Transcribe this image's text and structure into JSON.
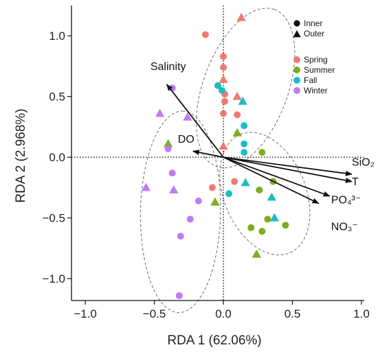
{
  "chart_data": {
    "type": "scatter",
    "xlabel": "RDA 1 (62.06%)",
    "ylabel": "RDA 2 (2.968%)",
    "xlim": [
      -1.1,
      1.02
    ],
    "ylim": [
      -1.18,
      1.25
    ],
    "xticks": [
      -1.0,
      -0.5,
      0.0,
      0.5,
      1.0
    ],
    "yticks": [
      -1.0,
      -0.5,
      0.0,
      0.5,
      1.0
    ],
    "xtick_labels": [
      "−1.0",
      "−0.5",
      "0.0",
      "0.5",
      "1.0"
    ],
    "ytick_labels": [
      "−1.0",
      "−0.5",
      "0.0",
      "0.5",
      "1.0"
    ],
    "grid": false,
    "reference_lines": "dotted lines at x=0 and y=0",
    "legend_placement": "top-right",
    "shape_legend": [
      {
        "label": "Inner",
        "shape": "circle"
      },
      {
        "label": "Outer",
        "shape": "triangle"
      }
    ],
    "season_legend": [
      {
        "label": "Spring",
        "color": "#F07A72"
      },
      {
        "label": "Summer",
        "color": "#7CAE1E"
      },
      {
        "label": "Fall",
        "color": "#1EBCC2"
      },
      {
        "label": "Winter",
        "color": "#C07CF0"
      }
    ],
    "points": [
      {
        "season": "Spring",
        "site": "Inner",
        "x": -0.13,
        "y": 1.01
      },
      {
        "season": "Spring",
        "site": "Outer",
        "x": 0.13,
        "y": 1.15
      },
      {
        "season": "Spring",
        "site": "Inner",
        "x": 0.0,
        "y": 0.83
      },
      {
        "season": "Spring",
        "site": "Inner",
        "x": 0.0,
        "y": 0.74
      },
      {
        "season": "Spring",
        "site": "Outer",
        "x": 0.0,
        "y": 0.64
      },
      {
        "season": "Spring",
        "site": "Inner",
        "x": 0.01,
        "y": 0.52
      },
      {
        "season": "Spring",
        "site": "Inner",
        "x": 0.01,
        "y": 0.46
      },
      {
        "season": "Spring",
        "site": "Outer",
        "x": 0.1,
        "y": 0.5
      },
      {
        "season": "Spring",
        "site": "Inner",
        "x": 0.0,
        "y": 0.36
      },
      {
        "season": "Spring",
        "site": "Inner",
        "x": 0.1,
        "y": 0.35
      },
      {
        "season": "Spring",
        "site": "Outer",
        "x": 0.0,
        "y": 0.09
      },
      {
        "season": "Spring",
        "site": "Inner",
        "x": -0.08,
        "y": -0.25
      },
      {
        "season": "Spring",
        "site": "Inner",
        "x": 0.08,
        "y": -0.2
      },
      {
        "season": "Summer",
        "site": "Outer",
        "x": -0.4,
        "y": 0.11
      },
      {
        "season": "Summer",
        "site": "Outer",
        "x": 0.1,
        "y": 0.2
      },
      {
        "season": "Summer",
        "site": "Inner",
        "x": 0.28,
        "y": 0.04
      },
      {
        "season": "Summer",
        "site": "Inner",
        "x": 0.36,
        "y": -0.2
      },
      {
        "season": "Summer",
        "site": "Inner",
        "x": 0.26,
        "y": -0.27
      },
      {
        "season": "Summer",
        "site": "Outer",
        "x": -0.06,
        "y": -0.37
      },
      {
        "season": "Summer",
        "site": "Inner",
        "x": 0.32,
        "y": -0.51
      },
      {
        "season": "Summer",
        "site": "Inner",
        "x": 0.2,
        "y": -0.58
      },
      {
        "season": "Summer",
        "site": "Inner",
        "x": 0.28,
        "y": -0.61
      },
      {
        "season": "Summer",
        "site": "Inner",
        "x": 0.45,
        "y": -0.56
      },
      {
        "season": "Summer",
        "site": "Outer",
        "x": 0.24,
        "y": -0.8
      },
      {
        "season": "Fall",
        "site": "Inner",
        "x": -0.04,
        "y": 0.59
      },
      {
        "season": "Fall",
        "site": "Inner",
        "x": -0.01,
        "y": 0.55
      },
      {
        "season": "Fall",
        "site": "Outer",
        "x": 0.14,
        "y": 0.46
      },
      {
        "season": "Fall",
        "site": "Inner",
        "x": 0.15,
        "y": 0.26
      },
      {
        "season": "Fall",
        "site": "Inner",
        "x": 0.15,
        "y": 0.11
      },
      {
        "season": "Fall",
        "site": "Inner",
        "x": 0.15,
        "y": 0.04
      },
      {
        "season": "Fall",
        "site": "Outer",
        "x": 0.16,
        "y": -0.21
      },
      {
        "season": "Fall",
        "site": "Inner",
        "x": 0.04,
        "y": -0.3
      },
      {
        "season": "Fall",
        "site": "Outer",
        "x": 0.35,
        "y": -0.33
      },
      {
        "season": "Fall",
        "site": "Outer",
        "x": 0.37,
        "y": -0.5
      },
      {
        "season": "Winter",
        "site": "Inner",
        "x": -0.37,
        "y": 0.57
      },
      {
        "season": "Winter",
        "site": "Outer",
        "x": -0.46,
        "y": 0.36
      },
      {
        "season": "Winter",
        "site": "Outer",
        "x": -0.26,
        "y": 0.33
      },
      {
        "season": "Winter",
        "site": "Inner",
        "x": -0.4,
        "y": 0.07
      },
      {
        "season": "Winter",
        "site": "Inner",
        "x": -0.37,
        "y": -0.13
      },
      {
        "season": "Winter",
        "site": "Outer",
        "x": -0.56,
        "y": -0.25
      },
      {
        "season": "Winter",
        "site": "Outer",
        "x": -0.36,
        "y": -0.27
      },
      {
        "season": "Winter",
        "site": "Inner",
        "x": -0.18,
        "y": -0.36
      },
      {
        "season": "Winter",
        "site": "Inner",
        "x": -0.24,
        "y": -0.51
      },
      {
        "season": "Winter",
        "site": "Inner",
        "x": -0.31,
        "y": -0.65
      },
      {
        "season": "Winter",
        "site": "Inner",
        "x": -0.32,
        "y": -1.14
      }
    ],
    "vectors": [
      {
        "label": "Salinity",
        "x": -0.41,
        "y": 0.6,
        "lx": -0.4,
        "ly": 0.72
      },
      {
        "label": "DO",
        "x": -0.22,
        "y": 0.05,
        "lx": -0.27,
        "ly": 0.12
      },
      {
        "label": "SiO₂",
        "x": 0.93,
        "y": -0.14,
        "lx": 0.93,
        "ly": -0.07
      },
      {
        "label": "T",
        "x": 0.93,
        "y": -0.2,
        "lx": 0.93,
        "ly": -0.23
      },
      {
        "label": "PO₄³⁻",
        "x": 0.77,
        "y": -0.32,
        "lx": 0.78,
        "ly": -0.38
      },
      {
        "label": "NO₃⁻",
        "x": 0.69,
        "y": -0.38,
        "lx": 0.78,
        "ly": -0.6
      }
    ],
    "ellipses": [
      {
        "name": "spring-fall-cluster",
        "cx": 0.16,
        "cy": 0.57,
        "rx": 0.68,
        "ry": 0.31,
        "angle_deg": 72
      },
      {
        "name": "winter-cluster",
        "cx": -0.31,
        "cy": -0.45,
        "rx": 0.83,
        "ry": 0.29,
        "angle_deg": 89
      },
      {
        "name": "summer-cluster",
        "cx": 0.3,
        "cy": -0.3,
        "rx": 0.52,
        "ry": 0.3,
        "angle_deg": 110
      }
    ]
  }
}
